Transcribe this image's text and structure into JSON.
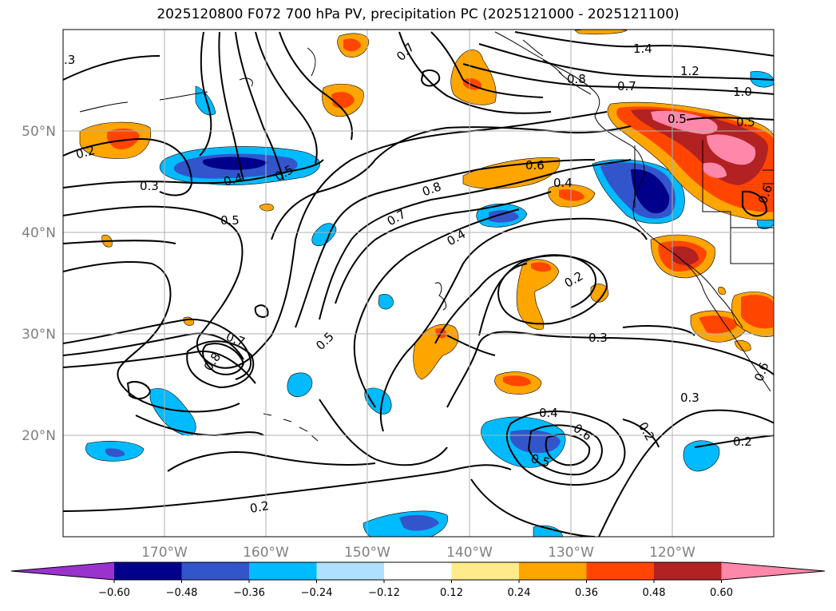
{
  "title": "2025120800 F072 700 hPa PV, precipitation PC (2025121000 - 2025121100)",
  "map": {
    "lon_range": [
      -180,
      -110
    ],
    "lat_range": [
      10,
      60
    ],
    "lat_ticks": [
      "20°N",
      "30°N",
      "40°N",
      "50°N"
    ],
    "lon_ticks": [
      "170°W",
      "160°W",
      "150°W",
      "140°W",
      "130°W",
      "120°W"
    ],
    "grid": true,
    "contour_labels": [
      ".3",
      "0.7",
      "0.8",
      "1.4",
      "1.2",
      "0.7",
      "1.0",
      "0.5",
      "0.5",
      "0.2",
      "0.3",
      "0.4",
      "0.5",
      "0.8",
      "0.6",
      "0.4",
      "0.7",
      "0.6",
      "0.5",
      "0.4",
      "0.2",
      "0.7",
      "0.8",
      "0.5",
      "0.3",
      "0.3",
      "0.4",
      "0.6",
      "0.5",
      "0.2",
      "0.2",
      "0.2",
      "0.6"
    ]
  },
  "colorbar": {
    "tick_labels": [
      "−0.60",
      "−0.48",
      "−0.36",
      "−0.24",
      "−0.12",
      "0.12",
      "0.24",
      "0.36",
      "0.48",
      "0.60"
    ],
    "colors": [
      "#9933cc",
      "#00008b",
      "#3355cc",
      "#00bbff",
      "#b0e0ff",
      "#ffffff",
      "#ffeb8a",
      "#ffa500",
      "#ff4500",
      "#b22222",
      "#ff88aa"
    ]
  }
}
